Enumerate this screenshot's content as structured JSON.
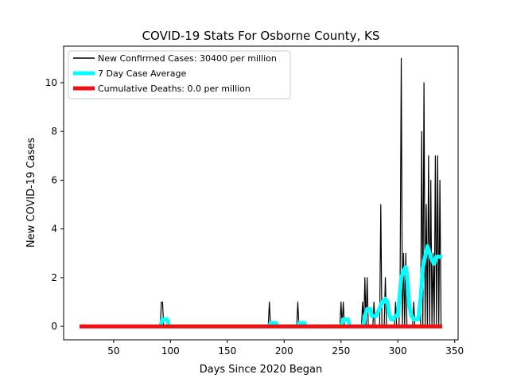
{
  "chart_data": {
    "type": "line",
    "title": "COVID-19 Stats For Osborne County, KS",
    "xlabel": "Days Since 2020 Began",
    "ylabel": "New COVID-19 Cases",
    "xlim": [
      6,
      353
    ],
    "ylim": [
      -0.55,
      11.5
    ],
    "x_ticks": [
      50,
      100,
      150,
      200,
      250,
      300,
      350
    ],
    "y_ticks": [
      0,
      2,
      4,
      6,
      8,
      10
    ],
    "x_tick_labels": [
      "50",
      "100",
      "150",
      "200",
      "250",
      "300",
      "350"
    ],
    "y_tick_labels": [
      "0",
      "2",
      "4",
      "6",
      "8",
      "10"
    ],
    "grid": false,
    "legend_position": "top-left",
    "series": [
      {
        "name": "New Confirmed Cases: 30400 per million",
        "color": "#000000",
        "points": [
          [
            20,
            0
          ],
          [
            91,
            0
          ],
          [
            92,
            1
          ],
          [
            93,
            1
          ],
          [
            94,
            0
          ],
          [
            186,
            0
          ],
          [
            187,
            1
          ],
          [
            188,
            0
          ],
          [
            211,
            0
          ],
          [
            212,
            1
          ],
          [
            213,
            0
          ],
          [
            249,
            0
          ],
          [
            250,
            1
          ],
          [
            251,
            0
          ],
          [
            252,
            1
          ],
          [
            253,
            0
          ],
          [
            268,
            0
          ],
          [
            269,
            1
          ],
          [
            270,
            0
          ],
          [
            271,
            2
          ],
          [
            272,
            0
          ],
          [
            273,
            2
          ],
          [
            274,
            0
          ],
          [
            278,
            0
          ],
          [
            279,
            1
          ],
          [
            280,
            0
          ],
          [
            284,
            0
          ],
          [
            285,
            5
          ],
          [
            286,
            0
          ],
          [
            288,
            0
          ],
          [
            289,
            2
          ],
          [
            290,
            0
          ],
          [
            297,
            0
          ],
          [
            298,
            1
          ],
          [
            299,
            0
          ],
          [
            301,
            0
          ],
          [
            302,
            2
          ],
          [
            303,
            11
          ],
          [
            304,
            0
          ],
          [
            305,
            3
          ],
          [
            306,
            0
          ],
          [
            307,
            3
          ],
          [
            308,
            0
          ],
          [
            313,
            0
          ],
          [
            314,
            1
          ],
          [
            315,
            0
          ],
          [
            320,
            0
          ],
          [
            321,
            8
          ],
          [
            322,
            0
          ],
          [
            323,
            10
          ],
          [
            324,
            0
          ],
          [
            325,
            5
          ],
          [
            326,
            0
          ],
          [
            327,
            7
          ],
          [
            328,
            0
          ],
          [
            329,
            6
          ],
          [
            330,
            0
          ],
          [
            331,
            3
          ],
          [
            332,
            0
          ],
          [
            333,
            7
          ],
          [
            334,
            0
          ],
          [
            335,
            7
          ],
          [
            336,
            0
          ],
          [
            337,
            6
          ],
          [
            338,
            0
          ],
          [
            339,
            0
          ]
        ]
      },
      {
        "name": "7 Day Case Average",
        "color": "#00ffff",
        "points": [
          [
            91,
            0
          ],
          [
            92,
            0.14
          ],
          [
            93,
            0.29
          ],
          [
            94,
            0.29
          ],
          [
            97,
            0.29
          ],
          [
            98,
            0.14
          ],
          [
            99,
            0
          ],
          [
            187,
            0
          ],
          [
            188,
            0.14
          ],
          [
            193,
            0.14
          ],
          [
            194,
            0
          ],
          [
            212,
            0
          ],
          [
            213,
            0.14
          ],
          [
            218,
            0.14
          ],
          [
            219,
            0
          ],
          [
            250,
            0
          ],
          [
            251,
            0.14
          ],
          [
            252,
            0.29
          ],
          [
            256,
            0.29
          ],
          [
            257,
            0.14
          ],
          [
            258,
            0
          ],
          [
            269,
            0
          ],
          [
            270,
            0.14
          ],
          [
            271,
            0.43
          ],
          [
            273,
            0.71
          ],
          [
            276,
            0.71
          ],
          [
            277,
            0.43
          ],
          [
            279,
            0.43
          ],
          [
            281,
            0.43
          ],
          [
            285,
            0.86
          ],
          [
            286,
            1.0
          ],
          [
            288,
            1.0
          ],
          [
            289,
            1.14
          ],
          [
            291,
            1.0
          ],
          [
            292,
            0.57
          ],
          [
            294,
            0.29
          ],
          [
            296,
            0.29
          ],
          [
            298,
            0.43
          ],
          [
            300,
            0.43
          ],
          [
            303,
            2.0
          ],
          [
            305,
            2.29
          ],
          [
            307,
            2.43
          ],
          [
            308,
            2.14
          ],
          [
            310,
            0.86
          ],
          [
            312,
            0.43
          ],
          [
            314,
            0.29
          ],
          [
            318,
            0.29
          ],
          [
            320,
            1.14
          ],
          [
            322,
            2.43
          ],
          [
            324,
            2.86
          ],
          [
            326,
            3.29
          ],
          [
            328,
            3.0
          ],
          [
            330,
            2.71
          ],
          [
            332,
            2.57
          ],
          [
            334,
            2.86
          ],
          [
            339,
            2.86
          ]
        ]
      },
      {
        "name": "Cumulative Deaths: 0.0 per million",
        "color": "#ee1111",
        "points": [
          [
            20,
            0
          ],
          [
            339,
            0
          ]
        ]
      }
    ]
  }
}
